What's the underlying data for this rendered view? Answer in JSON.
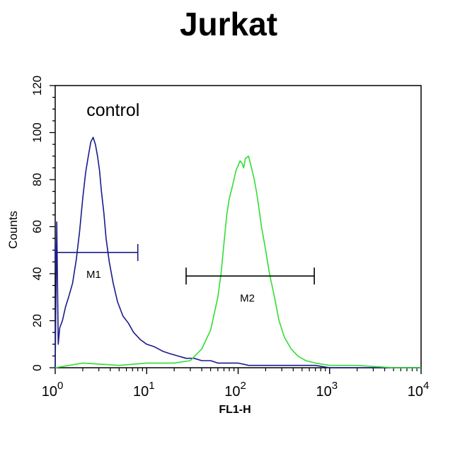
{
  "chart_data": {
    "type": "line",
    "title": "Jurkat",
    "xlabel": "FL1-H",
    "ylabel": "Counts",
    "x_scale": "log",
    "xlim": [
      1,
      10000
    ],
    "ylim": [
      0,
      120
    ],
    "x_ticks": [
      {
        "value": 1,
        "base": "10",
        "exp": "0"
      },
      {
        "value": 10,
        "base": "10",
        "exp": "1"
      },
      {
        "value": 100,
        "base": "10",
        "exp": "2"
      },
      {
        "value": 1000,
        "base": "10",
        "exp": "3"
      },
      {
        "value": 10000,
        "base": "10",
        "exp": "4"
      }
    ],
    "y_ticks": [
      0,
      20,
      40,
      60,
      80,
      100,
      120
    ],
    "grid": false,
    "annotations": [
      {
        "text": "control",
        "x": 2.2,
        "y": 107
      }
    ],
    "series": [
      {
        "name": "control",
        "color": "#1a1a8c",
        "x": [
          1.0,
          1.04,
          1.08,
          1.12,
          1.2,
          1.3,
          1.4,
          1.55,
          1.7,
          1.85,
          2.0,
          2.15,
          2.3,
          2.45,
          2.6,
          2.75,
          2.9,
          3.05,
          3.2,
          3.4,
          3.6,
          3.9,
          4.3,
          4.8,
          5.5,
          6.3,
          7.2,
          8.5,
          10,
          12,
          15,
          18,
          22,
          27,
          33,
          40,
          50,
          60,
          75,
          100,
          130,
          180,
          250,
          350,
          500,
          700,
          1000,
          2000,
          4000,
          10000
        ],
        "y": [
          0,
          62,
          10,
          17,
          20,
          26,
          30,
          36,
          46,
          58,
          72,
          83,
          90,
          96,
          98,
          95,
          90,
          84,
          75,
          66,
          55,
          45,
          36,
          28,
          22,
          19,
          15,
          12,
          10,
          9,
          7,
          6,
          5,
          4,
          4,
          3,
          3,
          2,
          2,
          2,
          1,
          1,
          1,
          1,
          1,
          1,
          0,
          0,
          0,
          0
        ]
      },
      {
        "name": "",
        "color": "#33dd33",
        "x": [
          1.0,
          2,
          5,
          10,
          20,
          30,
          40,
          50,
          60,
          65,
          70,
          75,
          80,
          85,
          90,
          95,
          100,
          105,
          110,
          115,
          120,
          130,
          140,
          150,
          160,
          170,
          180,
          200,
          220,
          250,
          280,
          320,
          380,
          450,
          550,
          700,
          1000,
          2000,
          5000,
          10000
        ],
        "y": [
          0,
          2,
          1,
          2,
          2,
          3,
          8,
          16,
          30,
          40,
          53,
          65,
          72,
          76,
          80,
          84,
          86,
          88,
          87,
          85,
          89,
          90,
          85,
          80,
          74,
          67,
          60,
          50,
          40,
          30,
          20,
          13,
          8,
          5,
          3,
          2,
          1,
          1,
          0,
          0
        ]
      }
    ],
    "markers": [
      {
        "label": "M1",
        "x_start": 1.0,
        "x_end": 8,
        "y": 49,
        "color": "#1a1a8c"
      },
      {
        "label": "M2",
        "x_start": 27,
        "x_end": 680,
        "y": 39,
        "color": "#000000"
      }
    ]
  }
}
